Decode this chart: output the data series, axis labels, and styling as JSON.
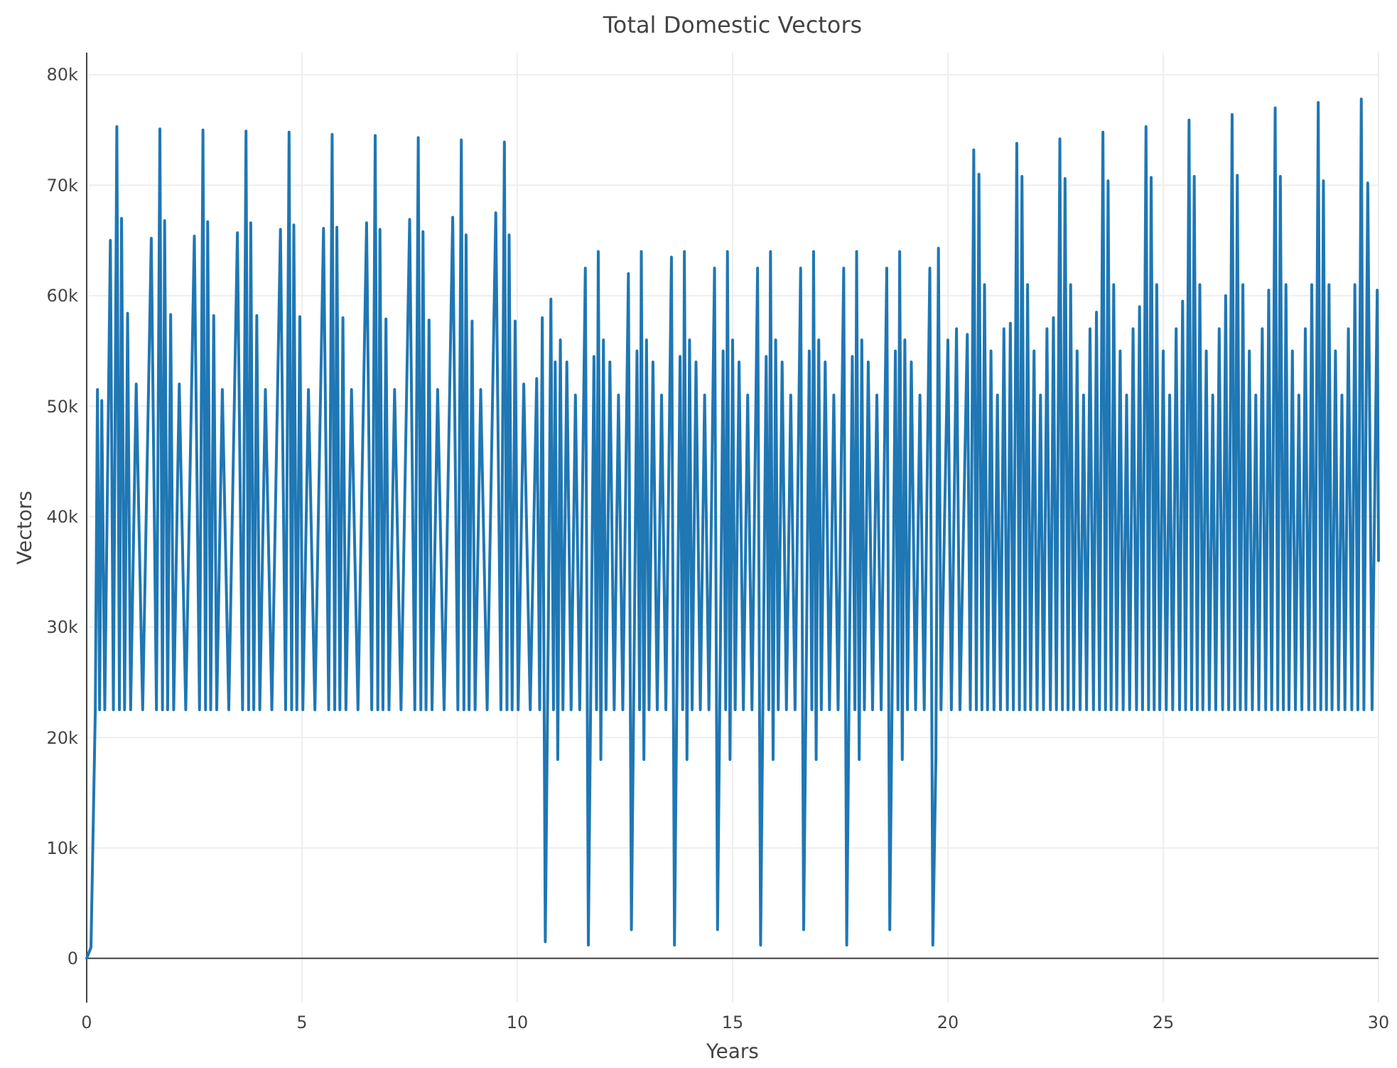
{
  "chart_data": {
    "type": "line",
    "title": "Total Domestic Vectors",
    "xlabel": "Years",
    "ylabel": "Vectors",
    "xlim": [
      0,
      30
    ],
    "xticks": [
      0,
      5,
      10,
      15,
      20,
      25,
      30
    ],
    "ylim": [
      -4000,
      82000
    ],
    "yticks": [
      0,
      {
        "value": 10000,
        "label": "10k"
      },
      {
        "value": 20000,
        "label": "20k"
      },
      {
        "value": 30000,
        "label": "30k"
      },
      {
        "value": 40000,
        "label": "40k"
      },
      {
        "value": 50000,
        "label": "50k"
      },
      {
        "value": 60000,
        "label": "60k"
      },
      {
        "value": 70000,
        "label": "70k"
      },
      {
        "value": 80000,
        "label": "80k"
      }
    ],
    "grid": true,
    "marker": "none",
    "line_style": "solid",
    "series": [
      {
        "color": "#1f77b4",
        "x": [
          0,
          0.1,
          0.2,
          0.25,
          0.3,
          0.35,
          0.42,
          0.55,
          0.62,
          0.7,
          0.76,
          0.81,
          0.88,
          0.95,
          1.02,
          1.15,
          1.3,
          1.5,
          1.62,
          1.7,
          1.76,
          1.81,
          1.88,
          1.95,
          2.02,
          2.15,
          2.3,
          2.5,
          2.62,
          2.7,
          2.76,
          2.81,
          2.88,
          2.95,
          3.02,
          3.15,
          3.3,
          3.5,
          3.62,
          3.7,
          3.76,
          3.81,
          3.88,
          3.95,
          4.02,
          4.15,
          4.3,
          4.5,
          4.62,
          4.7,
          4.76,
          4.81,
          4.88,
          4.95,
          5.02,
          5.15,
          5.3,
          5.5,
          5.62,
          5.7,
          5.76,
          5.81,
          5.88,
          5.95,
          6.02,
          6.15,
          6.3,
          6.5,
          6.62,
          6.7,
          6.76,
          6.81,
          6.88,
          6.95,
          7.02,
          7.15,
          7.3,
          7.5,
          7.62,
          7.7,
          7.76,
          7.81,
          7.88,
          7.95,
          8.02,
          8.15,
          8.3,
          8.5,
          8.62,
          8.7,
          8.76,
          8.81,
          8.88,
          8.95,
          9.02,
          9.15,
          9.3,
          9.5,
          9.62,
          9.7,
          9.76,
          9.81,
          9.88,
          9.95,
          10.02,
          10.15,
          10.3,
          10.45,
          10.52,
          10.58,
          10.65,
          10.72,
          10.78,
          10.84,
          10.88,
          10.94,
          11,
          11.06,
          11.15,
          11.25,
          11.35,
          11.45,
          11.58,
          11.65,
          11.72,
          11.78,
          11.84,
          11.88,
          11.94,
          12,
          12.06,
          12.15,
          12.25,
          12.35,
          12.45,
          12.58,
          12.65,
          12.72,
          12.78,
          12.84,
          12.88,
          12.94,
          13,
          13.06,
          13.15,
          13.25,
          13.35,
          13.45,
          13.58,
          13.65,
          13.72,
          13.78,
          13.84,
          13.88,
          13.94,
          14,
          14.06,
          14.15,
          14.25,
          14.35,
          14.45,
          14.58,
          14.65,
          14.72,
          14.78,
          14.84,
          14.88,
          14.94,
          15,
          15.06,
          15.15,
          15.25,
          15.35,
          15.45,
          15.58,
          15.65,
          15.72,
          15.78,
          15.84,
          15.88,
          15.94,
          16,
          16.06,
          16.15,
          16.25,
          16.35,
          16.45,
          16.58,
          16.65,
          16.72,
          16.78,
          16.84,
          16.88,
          16.94,
          17,
          17.06,
          17.15,
          17.25,
          17.35,
          17.45,
          17.58,
          17.65,
          17.72,
          17.78,
          17.84,
          17.88,
          17.94,
          18,
          18.06,
          18.15,
          18.25,
          18.35,
          18.45,
          18.58,
          18.65,
          18.72,
          18.78,
          18.84,
          18.88,
          18.94,
          19,
          19.06,
          19.15,
          19.25,
          19.35,
          19.45,
          19.58,
          19.65,
          19.72,
          19.78,
          19.84,
          20,
          20.08,
          20.2,
          20.28,
          20.45,
          20.52,
          20.6,
          20.66,
          20.72,
          20.79,
          20.85,
          20.92,
          21,
          21.07,
          21.15,
          21.22,
          21.3,
          21.38,
          21.45,
          21.52,
          21.6,
          21.66,
          21.72,
          21.79,
          21.85,
          21.92,
          22,
          22.07,
          22.15,
          22.22,
          22.3,
          22.38,
          22.45,
          22.52,
          22.6,
          22.66,
          22.72,
          22.79,
          22.85,
          22.92,
          23,
          23.07,
          23.15,
          23.22,
          23.3,
          23.38,
          23.45,
          23.52,
          23.6,
          23.66,
          23.72,
          23.79,
          23.85,
          23.92,
          24,
          24.07,
          24.15,
          24.22,
          24.3,
          24.38,
          24.45,
          24.52,
          24.6,
          24.66,
          24.72,
          24.79,
          24.85,
          24.92,
          25,
          25.07,
          25.15,
          25.22,
          25.3,
          25.38,
          25.45,
          25.52,
          25.6,
          25.66,
          25.72,
          25.79,
          25.85,
          25.92,
          26,
          26.07,
          26.15,
          26.22,
          26.3,
          26.38,
          26.45,
          26.52,
          26.6,
          26.66,
          26.72,
          26.79,
          26.85,
          26.92,
          27,
          27.07,
          27.15,
          27.22,
          27.3,
          27.38,
          27.45,
          27.52,
          27.6,
          27.66,
          27.72,
          27.79,
          27.85,
          27.92,
          28,
          28.07,
          28.15,
          28.22,
          28.3,
          28.38,
          28.45,
          28.52,
          28.6,
          28.66,
          28.72,
          28.79,
          28.85,
          28.92,
          29,
          29.07,
          29.15,
          29.22,
          29.3,
          29.38,
          29.45,
          29.52,
          29.6,
          29.66,
          29.75,
          29.85,
          29.97,
          30
        ],
        "values": [
          0,
          1000,
          22500,
          51500,
          22500,
          50500,
          22500,
          65000,
          22500,
          75300,
          22500,
          67000,
          22500,
          58400,
          22500,
          52000,
          22500,
          65200,
          22500,
          75100,
          22500,
          66800,
          22500,
          58300,
          22500,
          52000,
          22500,
          65400,
          22500,
          75000,
          22500,
          66700,
          22500,
          58200,
          22500,
          51500,
          22500,
          65700,
          22500,
          74900,
          22500,
          66600,
          22500,
          58200,
          22500,
          51500,
          22500,
          66000,
          22500,
          74800,
          22500,
          66400,
          22500,
          58100,
          22500,
          51500,
          22500,
          66100,
          22500,
          74600,
          22500,
          66200,
          22500,
          58000,
          22500,
          51500,
          22500,
          66600,
          22500,
          74500,
          22500,
          66000,
          22500,
          57900,
          22500,
          51500,
          22500,
          66900,
          22500,
          74300,
          22500,
          65800,
          22500,
          57800,
          22500,
          51500,
          22500,
          67100,
          22500,
          74100,
          22500,
          65500,
          22500,
          57700,
          22500,
          51500,
          22500,
          67500,
          22500,
          73900,
          22500,
          65500,
          22500,
          57700,
          22500,
          52000,
          22500,
          52500,
          22500,
          58000,
          1500,
          30000,
          59700,
          22500,
          54000,
          18000,
          56000,
          22500,
          54000,
          22500,
          51000,
          22500,
          62500,
          1200,
          30000,
          54500,
          22500,
          64000,
          18000,
          56000,
          22500,
          54000,
          22500,
          51000,
          22500,
          62000,
          2600,
          30000,
          55000,
          22500,
          64000,
          18000,
          56000,
          22500,
          54000,
          22500,
          51000,
          22500,
          63500,
          1200,
          30000,
          54500,
          22500,
          64000,
          18000,
          56000,
          22500,
          54000,
          22500,
          51000,
          22500,
          62500,
          2600,
          30000,
          55000,
          22500,
          64000,
          18000,
          56000,
          22500,
          54000,
          22500,
          51000,
          22500,
          62500,
          1200,
          30000,
          54500,
          22500,
          64000,
          18000,
          56000,
          22500,
          54000,
          22500,
          51000,
          22500,
          62500,
          2600,
          30000,
          55000,
          22500,
          64000,
          18000,
          56000,
          22500,
          54000,
          22500,
          51000,
          22500,
          62500,
          1200,
          30000,
          54500,
          22500,
          64000,
          18000,
          56000,
          22500,
          54000,
          22500,
          51000,
          22500,
          62500,
          2600,
          30000,
          55000,
          22500,
          64000,
          18000,
          56000,
          22500,
          54000,
          22500,
          51000,
          22500,
          62500,
          1200,
          18000,
          64300,
          22500,
          56000,
          22500,
          57000,
          22500,
          56500,
          22500,
          73200,
          22500,
          71000,
          22500,
          61000,
          22500,
          55000,
          22500,
          51000,
          22500,
          57000,
          22500,
          57500,
          22500,
          73800,
          22500,
          70800,
          22500,
          61000,
          22500,
          55000,
          22500,
          51000,
          22500,
          57000,
          22500,
          58000,
          22500,
          74200,
          22500,
          70600,
          22500,
          61000,
          22500,
          55000,
          22500,
          51000,
          22500,
          57000,
          22500,
          58500,
          22500,
          74800,
          22500,
          70400,
          22500,
          61000,
          22500,
          55000,
          22500,
          51000,
          22500,
          57000,
          22500,
          59000,
          22500,
          75300,
          22500,
          70700,
          22500,
          61000,
          22500,
          55000,
          22500,
          51000,
          22500,
          57000,
          22500,
          59500,
          22500,
          75900,
          22500,
          70800,
          22500,
          61000,
          22500,
          55000,
          22500,
          51000,
          22500,
          57000,
          22500,
          60000,
          22500,
          76400,
          22500,
          70900,
          22500,
          61000,
          22500,
          55000,
          22500,
          51000,
          22500,
          57000,
          22500,
          60500,
          22500,
          77000,
          22500,
          70800,
          22500,
          61000,
          22500,
          55000,
          22500,
          51000,
          22500,
          57000,
          22500,
          61000,
          22500,
          77500,
          22500,
          70400,
          22500,
          61000,
          22500,
          55000,
          22500,
          51000,
          22500,
          57000,
          22500,
          61000,
          22500,
          77800,
          22500,
          70200,
          22500,
          60500,
          36000
        ]
      }
    ]
  }
}
